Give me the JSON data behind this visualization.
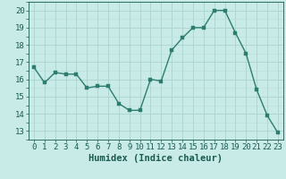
{
  "x": [
    0,
    1,
    2,
    3,
    4,
    5,
    6,
    7,
    8,
    9,
    10,
    11,
    12,
    13,
    14,
    15,
    16,
    17,
    18,
    19,
    20,
    21,
    22,
    23
  ],
  "y": [
    16.7,
    15.8,
    16.4,
    16.3,
    16.3,
    15.5,
    15.6,
    15.6,
    14.6,
    14.2,
    14.2,
    16.0,
    15.9,
    17.7,
    18.4,
    19.0,
    19.0,
    20.0,
    20.0,
    18.7,
    17.5,
    15.4,
    13.9,
    12.9
  ],
  "line_color": "#2d7d6e",
  "marker_color": "#2d7d6e",
  "bg_color": "#c8ebe8",
  "grid_color_major": "#aad4d0",
  "grid_color_minor": "#b8ddd9",
  "xlabel": "Humidex (Indice chaleur)",
  "xlabel_color": "#1a5a50",
  "tick_color": "#1a5a50",
  "ylim": [
    12.5,
    20.5
  ],
  "yticks": [
    13,
    14,
    15,
    16,
    17,
    18,
    19,
    20
  ],
  "xlim": [
    -0.5,
    23.5
  ],
  "xticks": [
    0,
    1,
    2,
    3,
    4,
    5,
    6,
    7,
    8,
    9,
    10,
    11,
    12,
    13,
    14,
    15,
    16,
    17,
    18,
    19,
    20,
    21,
    22,
    23
  ],
  "linewidth": 1.0,
  "markersize": 2.5,
  "xlabel_fontsize": 7.5,
  "tick_fontsize": 6.5
}
